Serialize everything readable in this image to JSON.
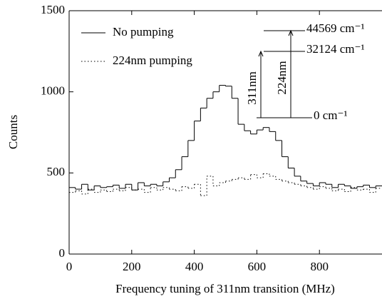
{
  "chart_data": {
    "type": "line",
    "drawstyle": "steps",
    "x_label": "Frequency tuning of  311nm transition (MHz)",
    "y_label": "Counts",
    "x": [
      0,
      20,
      40,
      60,
      80,
      100,
      120,
      140,
      160,
      180,
      200,
      220,
      240,
      260,
      280,
      300,
      320,
      340,
      360,
      380,
      400,
      420,
      440,
      460,
      480,
      500,
      520,
      540,
      560,
      580,
      600,
      620,
      640,
      660,
      680,
      700,
      720,
      740,
      760,
      780,
      800,
      820,
      840,
      860,
      880,
      900,
      920,
      940,
      960,
      980
    ],
    "series": [
      {
        "name": "No pumping",
        "color": "#000000",
        "dash": "solid",
        "values": [
          410,
          400,
          430,
          395,
          420,
          410,
          415,
          425,
          405,
          430,
          395,
          440,
          420,
          430,
          420,
          445,
          470,
          520,
          600,
          700,
          820,
          900,
          960,
          1000,
          1040,
          1035,
          960,
          800,
          760,
          740,
          765,
          780,
          755,
          700,
          600,
          530,
          480,
          450,
          435,
          420,
          440,
          430,
          410,
          430,
          420,
          405,
          415,
          425,
          410,
          420
        ]
      },
      {
        "name": "224nm pumping",
        "color": "#000000",
        "dash": "dotted",
        "values": [
          380,
          390,
          370,
          400,
          380,
          395,
          385,
          400,
          390,
          410,
          395,
          400,
          380,
          410,
          395,
          410,
          400,
          390,
          415,
          405,
          430,
          360,
          480,
          420,
          440,
          450,
          460,
          470,
          460,
          490,
          470,
          495,
          480,
          460,
          450,
          440,
          430,
          420,
          410,
          400,
          415,
          405,
          390,
          400,
          385,
          410,
          395,
          400,
          380,
          405
        ]
      }
    ],
    "xlim": [
      0,
      1000
    ],
    "ylim": [
      0,
      1500
    ],
    "xticks": [
      0,
      200,
      400,
      600,
      800
    ],
    "yticks": [
      0,
      500,
      1000,
      1500
    ],
    "legend": "upper left",
    "annotations": {
      "levels": [
        "44569 cm⁻¹",
        "32124 cm⁻¹",
        "0 cm⁻¹"
      ],
      "transitions": [
        "311nm",
        "224nm"
      ]
    }
  }
}
